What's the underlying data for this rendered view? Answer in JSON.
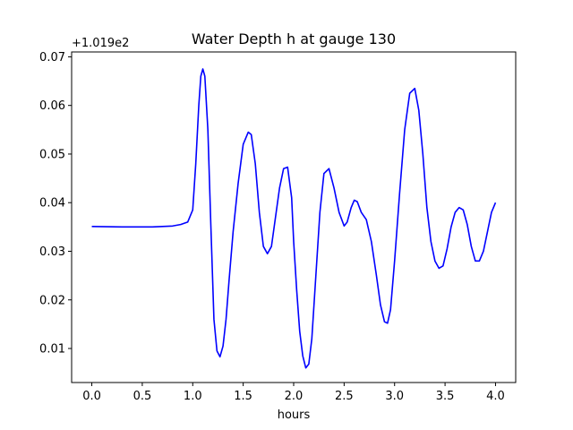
{
  "chart_data": {
    "type": "line",
    "title": "Water Depth h at gauge 130",
    "xlabel": "hours",
    "ylabel": "",
    "offset_label": "+1.019e2",
    "xlim": [
      -0.2,
      4.2
    ],
    "ylim": [
      0.003,
      0.071
    ],
    "xticks": [
      0.0,
      0.5,
      1.0,
      1.5,
      2.0,
      2.5,
      3.0,
      3.5,
      4.0
    ],
    "xtick_labels": [
      "0.0",
      "0.5",
      "1.0",
      "1.5",
      "2.0",
      "2.5",
      "3.0",
      "3.5",
      "4.0"
    ],
    "yticks": [
      0.01,
      0.02,
      0.03,
      0.04,
      0.05,
      0.06,
      0.07
    ],
    "ytick_labels": [
      "0.01",
      "0.02",
      "0.03",
      "0.04",
      "0.05",
      "0.06",
      "0.07"
    ],
    "grid": false,
    "line_color": "#0000ff",
    "series": [
      {
        "x": [
          0.0,
          0.3,
          0.6,
          0.8,
          0.88,
          0.95,
          1.0,
          1.03,
          1.06,
          1.08,
          1.1,
          1.12,
          1.15,
          1.18,
          1.21,
          1.24,
          1.27,
          1.3,
          1.33,
          1.36,
          1.4,
          1.45,
          1.5,
          1.55,
          1.58,
          1.62,
          1.66,
          1.7,
          1.74,
          1.78,
          1.82,
          1.86,
          1.9,
          1.94,
          1.98,
          2.0,
          2.03,
          2.06,
          2.09,
          2.12,
          2.15,
          2.18,
          2.22,
          2.26,
          2.3,
          2.35,
          2.4,
          2.45,
          2.5,
          2.53,
          2.57,
          2.6,
          2.63,
          2.67,
          2.72,
          2.77,
          2.82,
          2.86,
          2.9,
          2.93,
          2.96,
          3.0,
          3.05,
          3.1,
          3.15,
          3.2,
          3.24,
          3.28,
          3.32,
          3.36,
          3.4,
          3.44,
          3.48,
          3.52,
          3.56,
          3.6,
          3.64,
          3.68,
          3.72,
          3.76,
          3.8,
          3.84,
          3.88,
          3.92,
          3.96,
          4.0
        ],
        "y": [
          0.0351,
          0.035,
          0.035,
          0.0352,
          0.0355,
          0.036,
          0.0385,
          0.048,
          0.06,
          0.066,
          0.0675,
          0.066,
          0.055,
          0.035,
          0.016,
          0.0095,
          0.0083,
          0.0105,
          0.016,
          0.024,
          0.034,
          0.044,
          0.052,
          0.0545,
          0.054,
          0.048,
          0.038,
          0.031,
          0.0295,
          0.031,
          0.037,
          0.043,
          0.047,
          0.0473,
          0.041,
          0.032,
          0.022,
          0.0135,
          0.0085,
          0.006,
          0.0068,
          0.012,
          0.025,
          0.038,
          0.046,
          0.047,
          0.043,
          0.038,
          0.0352,
          0.036,
          0.039,
          0.0405,
          0.0402,
          0.038,
          0.0365,
          0.032,
          0.025,
          0.019,
          0.0155,
          0.0152,
          0.018,
          0.028,
          0.042,
          0.055,
          0.0625,
          0.0635,
          0.059,
          0.05,
          0.039,
          0.032,
          0.028,
          0.0265,
          0.027,
          0.0305,
          0.035,
          0.038,
          0.039,
          0.0385,
          0.0355,
          0.031,
          0.028,
          0.028,
          0.03,
          0.034,
          0.038,
          0.04
        ]
      }
    ]
  }
}
